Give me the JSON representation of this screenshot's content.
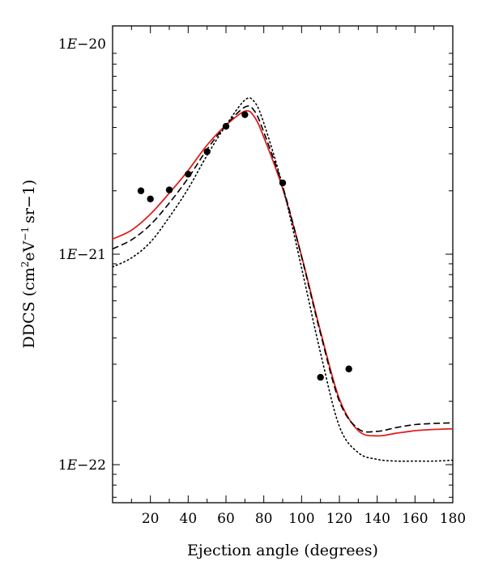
{
  "chart_data": {
    "type": "line",
    "xlabel": "Ejection angle (degrees)",
    "ylabel": {
      "prefix": "DDCS (cm",
      "sup1": "2",
      "mid": "eV",
      "sup2": "−1",
      "suffix": "sr−1)"
    },
    "xlim": [
      0,
      180
    ],
    "ylim": [
      5.5e-23,
      1e-20
    ],
    "yscale": "log",
    "xticks": [
      20,
      40,
      60,
      80,
      100,
      120,
      140,
      160,
      180
    ],
    "xtick_labels": [
      "20",
      "40",
      "60",
      "80",
      "100",
      "120",
      "140",
      "160",
      "180"
    ],
    "yticks": [
      1e-22,
      1e-21,
      1e-20
    ],
    "ytick_labels": [
      {
        "mantissa": "1",
        "exp": "−22"
      },
      {
        "mantissa": "1",
        "exp": "−21"
      },
      {
        "mantissa": "1",
        "exp": "−20"
      }
    ],
    "grid": false,
    "series": [
      {
        "style": "solid",
        "color": "#e0201e",
        "x": [
          0,
          10,
          20,
          30,
          40,
          50,
          60,
          70,
          75,
          80,
          90,
          100,
          110,
          120,
          130,
          140,
          150,
          160,
          170,
          180
        ],
        "y": [
          1.18e-21,
          1.3e-21,
          1.55e-21,
          1.95e-21,
          2.5e-21,
          3.3e-21,
          4.1e-21,
          4.78e-21,
          4.5e-21,
          3.6e-21,
          2.05e-21,
          9.8e-22,
          4.3e-22,
          2.05e-22,
          1.45e-22,
          1.37e-22,
          1.41e-22,
          1.45e-22,
          1.47e-22,
          1.48e-22
        ]
      },
      {
        "style": "dashed",
        "color": "#000000",
        "x": [
          0,
          10,
          20,
          30,
          40,
          50,
          60,
          70,
          75,
          80,
          90,
          100,
          110,
          120,
          130,
          140,
          150,
          160,
          170,
          180
        ],
        "y": [
          1.06e-21,
          1.17e-21,
          1.38e-21,
          1.75e-21,
          2.3e-21,
          3.15e-21,
          4.1e-21,
          5e-21,
          4.8e-21,
          3.8e-21,
          2.1e-21,
          9.7e-22,
          4.2e-22,
          2e-22,
          1.48e-22,
          1.44e-22,
          1.5e-22,
          1.55e-22,
          1.57e-22,
          1.58e-22
        ]
      },
      {
        "style": "dotted",
        "color": "#000000",
        "x": [
          0,
          10,
          20,
          30,
          40,
          50,
          60,
          70,
          75,
          80,
          90,
          100,
          110,
          120,
          130,
          140,
          150,
          160,
          170,
          180
        ],
        "y": [
          8.7e-22,
          9.6e-22,
          1.14e-21,
          1.5e-21,
          2.05e-21,
          2.95e-21,
          4.1e-21,
          5.4e-21,
          5.3e-21,
          4.2e-21,
          2.1e-21,
          8.6e-22,
          3.4e-22,
          1.52e-22,
          1.14e-22,
          1.06e-22,
          1.04e-22,
          1.04e-22,
          1.04e-22,
          1.05e-22
        ]
      },
      {
        "style": "markers",
        "color": "#000000",
        "x": [
          15,
          20,
          30,
          40,
          50,
          60,
          70,
          90,
          110,
          125
        ],
        "y": [
          2e-21,
          1.83e-21,
          2.02e-21,
          2.4e-21,
          3.07e-21,
          4.05e-21,
          4.6e-21,
          2.18e-21,
          2.6e-22,
          2.85e-22
        ]
      }
    ]
  }
}
